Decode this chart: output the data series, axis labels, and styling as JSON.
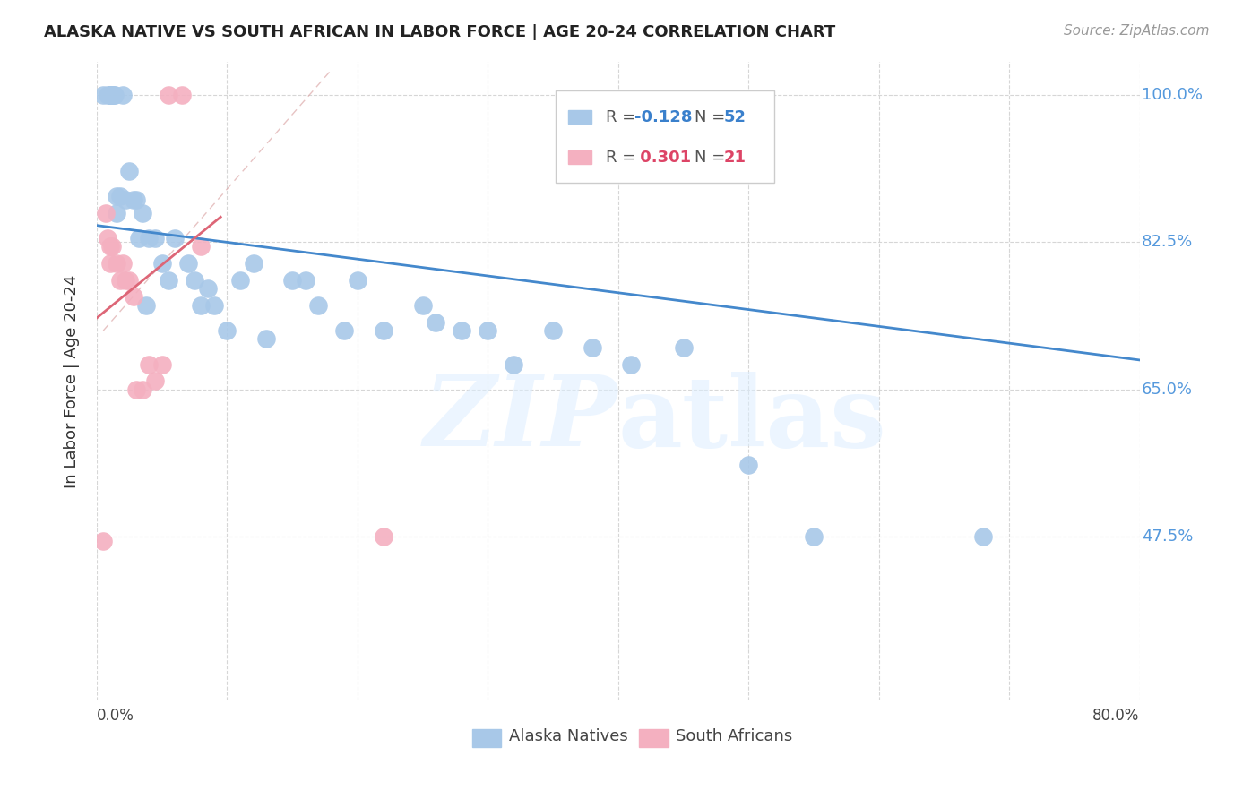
{
  "title": "ALASKA NATIVE VS SOUTH AFRICAN IN LABOR FORCE | AGE 20-24 CORRELATION CHART",
  "source": "Source: ZipAtlas.com",
  "ylabel": "In Labor Force | Age 20-24",
  "xmin": 0.0,
  "xmax": 0.8,
  "ymin": 0.28,
  "ymax": 1.04,
  "alaska_R": -0.128,
  "alaska_N": 52,
  "sa_R": 0.301,
  "sa_N": 21,
  "alaska_color": "#a8c8e8",
  "sa_color": "#f4b0c0",
  "alaska_line_color": "#4488cc",
  "sa_line_color": "#dd6677",
  "alaska_x": [
    0.005,
    0.008,
    0.01,
    0.01,
    0.01,
    0.012,
    0.012,
    0.013,
    0.014,
    0.015,
    0.015,
    0.018,
    0.02,
    0.022,
    0.025,
    0.028,
    0.03,
    0.032,
    0.035,
    0.038,
    0.04,
    0.045,
    0.05,
    0.055,
    0.06,
    0.07,
    0.075,
    0.08,
    0.085,
    0.09,
    0.1,
    0.11,
    0.12,
    0.13,
    0.15,
    0.16,
    0.17,
    0.19,
    0.2,
    0.22,
    0.25,
    0.26,
    0.28,
    0.3,
    0.32,
    0.35,
    0.38,
    0.41,
    0.45,
    0.5,
    0.55,
    0.68
  ],
  "alaska_y": [
    1.0,
    1.0,
    1.0,
    1.0,
    1.0,
    1.0,
    1.0,
    1.0,
    1.0,
    0.88,
    0.86,
    0.88,
    1.0,
    0.875,
    0.91,
    0.875,
    0.875,
    0.83,
    0.86,
    0.75,
    0.83,
    0.83,
    0.8,
    0.78,
    0.83,
    0.8,
    0.78,
    0.75,
    0.77,
    0.75,
    0.72,
    0.78,
    0.8,
    0.71,
    0.78,
    0.78,
    0.75,
    0.72,
    0.78,
    0.72,
    0.75,
    0.73,
    0.72,
    0.72,
    0.68,
    0.72,
    0.7,
    0.68,
    0.7,
    0.56,
    0.475,
    0.475
  ],
  "sa_x": [
    0.005,
    0.007,
    0.008,
    0.01,
    0.01,
    0.012,
    0.015,
    0.018,
    0.02,
    0.022,
    0.025,
    0.028,
    0.03,
    0.035,
    0.04,
    0.045,
    0.05,
    0.055,
    0.065,
    0.08,
    0.22
  ],
  "sa_y": [
    0.47,
    0.86,
    0.83,
    0.82,
    0.8,
    0.82,
    0.8,
    0.78,
    0.8,
    0.78,
    0.78,
    0.76,
    0.65,
    0.65,
    0.68,
    0.66,
    0.68,
    1.0,
    1.0,
    0.82,
    0.475
  ],
  "watermark_zip": "ZIP",
  "watermark_atlas": "atlas",
  "grid_color": "#cccccc",
  "background_color": "#ffffff",
  "ref_line_x": [
    0.005,
    0.18
  ],
  "ref_line_y": [
    0.72,
    1.03
  ],
  "alaska_trend_x": [
    0.0,
    0.8
  ],
  "alaska_trend_y": [
    0.845,
    0.685
  ],
  "sa_trend_x": [
    0.0,
    0.095
  ],
  "sa_trend_y": [
    0.735,
    0.855
  ]
}
